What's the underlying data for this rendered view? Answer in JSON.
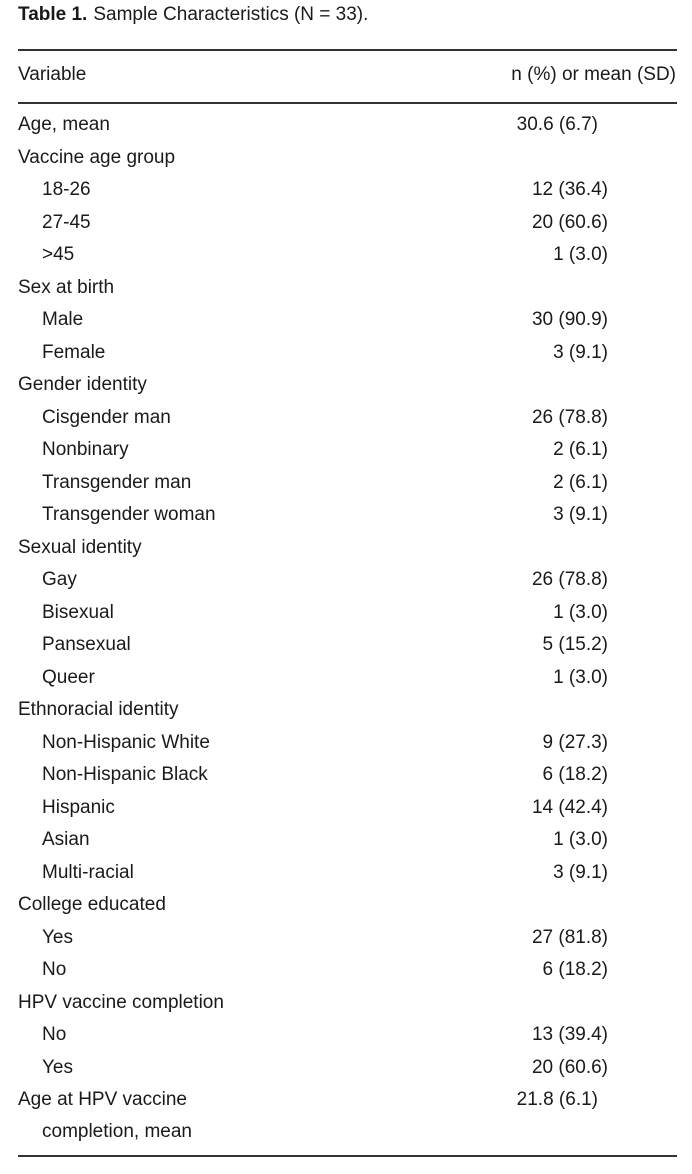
{
  "caption": {
    "label": "Table 1.",
    "text": "Sample Characteristics (N = 33)."
  },
  "header": {
    "variable": "Variable",
    "value": "n (%) or mean (SD)"
  },
  "rows": [
    {
      "label": "Age, mean",
      "value": "30.6 (6.7)",
      "level": 0,
      "mean": true
    },
    {
      "label": "Vaccine age group",
      "value": "",
      "level": 0
    },
    {
      "label": "18-26",
      "value": "12 (36.4)",
      "level": 1
    },
    {
      "label": "27-45",
      "value": "20 (60.6)",
      "level": 1
    },
    {
      "label": ">45",
      "value": "1 (3.0)",
      "level": 1
    },
    {
      "label": "Sex at birth",
      "value": "",
      "level": 0
    },
    {
      "label": "Male",
      "value": "30 (90.9)",
      "level": 1
    },
    {
      "label": "Female",
      "value": "3 (9.1)",
      "level": 1
    },
    {
      "label": "Gender identity",
      "value": "",
      "level": 0
    },
    {
      "label": "Cisgender man",
      "value": "26 (78.8)",
      "level": 1
    },
    {
      "label": "Nonbinary",
      "value": "2 (6.1)",
      "level": 1
    },
    {
      "label": "Transgender man",
      "value": "2 (6.1)",
      "level": 1
    },
    {
      "label": "Transgender woman",
      "value": "3 (9.1)",
      "level": 1
    },
    {
      "label": "Sexual identity",
      "value": "",
      "level": 0
    },
    {
      "label": "Gay",
      "value": "26 (78.8)",
      "level": 1
    },
    {
      "label": "Bisexual",
      "value": "1 (3.0)",
      "level": 1
    },
    {
      "label": "Pansexual",
      "value": "5 (15.2)",
      "level": 1
    },
    {
      "label": "Queer",
      "value": "1 (3.0)",
      "level": 1
    },
    {
      "label": "Ethnoracial identity",
      "value": "",
      "level": 0
    },
    {
      "label": "Non-Hispanic White",
      "value": "9 (27.3)",
      "level": 1
    },
    {
      "label": "Non-Hispanic Black",
      "value": "6 (18.2)",
      "level": 1
    },
    {
      "label": "Hispanic",
      "value": "14 (42.4)",
      "level": 1
    },
    {
      "label": "Asian",
      "value": "1 (3.0)",
      "level": 1
    },
    {
      "label": "Multi-racial",
      "value": "3 (9.1)",
      "level": 1
    },
    {
      "label": "College educated",
      "value": "",
      "level": 0
    },
    {
      "label": "Yes",
      "value": "27 (81.8)",
      "level": 1
    },
    {
      "label": "No",
      "value": "6 (18.2)",
      "level": 1
    },
    {
      "label": "HPV vaccine completion",
      "value": "",
      "level": 0
    },
    {
      "label": "No",
      "value": "13 (39.4)",
      "level": 1
    },
    {
      "label": "Yes",
      "value": "20 (60.6)",
      "level": 1
    },
    {
      "label": "Age at HPV vaccine",
      "label2": "completion, mean",
      "value": "21.8 (6.1)",
      "level": 0,
      "mean": true
    }
  ]
}
